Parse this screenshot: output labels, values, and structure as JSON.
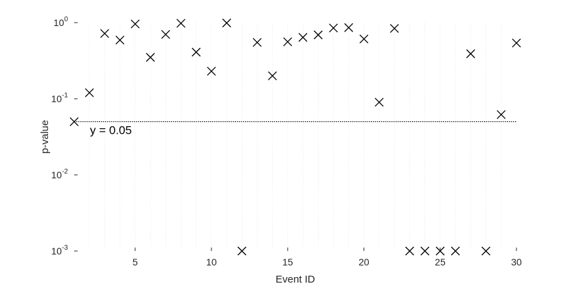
{
  "chart_data": {
    "type": "scatter",
    "xlabel": "Event ID",
    "ylabel": "p-value",
    "xlim": [
      1,
      30
    ],
    "ylim": [
      0.001,
      1
    ],
    "yscale": "log",
    "grid": "vertical minor grid at every integer x",
    "x_ticks": [
      5,
      10,
      15,
      20,
      25,
      30
    ],
    "y_ticks": [
      {
        "value": 0.001,
        "base": "10",
        "exp": "-3"
      },
      {
        "value": 0.01,
        "base": "10",
        "exp": "-2"
      },
      {
        "value": 0.1,
        "base": "10",
        "exp": "-1"
      },
      {
        "value": 1,
        "base": "10",
        "exp": "0"
      }
    ],
    "marker": "x",
    "marker_color": "#000000",
    "reference_line": {
      "y": 0.05,
      "label": "y = 0.05",
      "style": "dotted",
      "color": "#000000"
    },
    "points": [
      {
        "x": 1,
        "y": 0.05
      },
      {
        "x": 2,
        "y": 0.12
      },
      {
        "x": 3,
        "y": 0.72
      },
      {
        "x": 4,
        "y": 0.59
      },
      {
        "x": 5,
        "y": 0.96
      },
      {
        "x": 6,
        "y": 0.35
      },
      {
        "x": 7,
        "y": 0.7
      },
      {
        "x": 8,
        "y": 0.98
      },
      {
        "x": 9,
        "y": 0.41
      },
      {
        "x": 10,
        "y": 0.23
      },
      {
        "x": 11,
        "y": 0.99
      },
      {
        "x": 12,
        "y": 0.001
      },
      {
        "x": 13,
        "y": 0.55
      },
      {
        "x": 14,
        "y": 0.2
      },
      {
        "x": 15,
        "y": 0.56
      },
      {
        "x": 16,
        "y": 0.64
      },
      {
        "x": 17,
        "y": 0.69
      },
      {
        "x": 18,
        "y": 0.85
      },
      {
        "x": 19,
        "y": 0.86
      },
      {
        "x": 20,
        "y": 0.61
      },
      {
        "x": 21,
        "y": 0.09
      },
      {
        "x": 22,
        "y": 0.84
      },
      {
        "x": 23,
        "y": 0.001
      },
      {
        "x": 24,
        "y": 0.001
      },
      {
        "x": 25,
        "y": 0.001
      },
      {
        "x": 26,
        "y": 0.001
      },
      {
        "x": 27,
        "y": 0.39
      },
      {
        "x": 28,
        "y": 0.001
      },
      {
        "x": 29,
        "y": 0.062
      },
      {
        "x": 30,
        "y": 0.54
      }
    ]
  }
}
